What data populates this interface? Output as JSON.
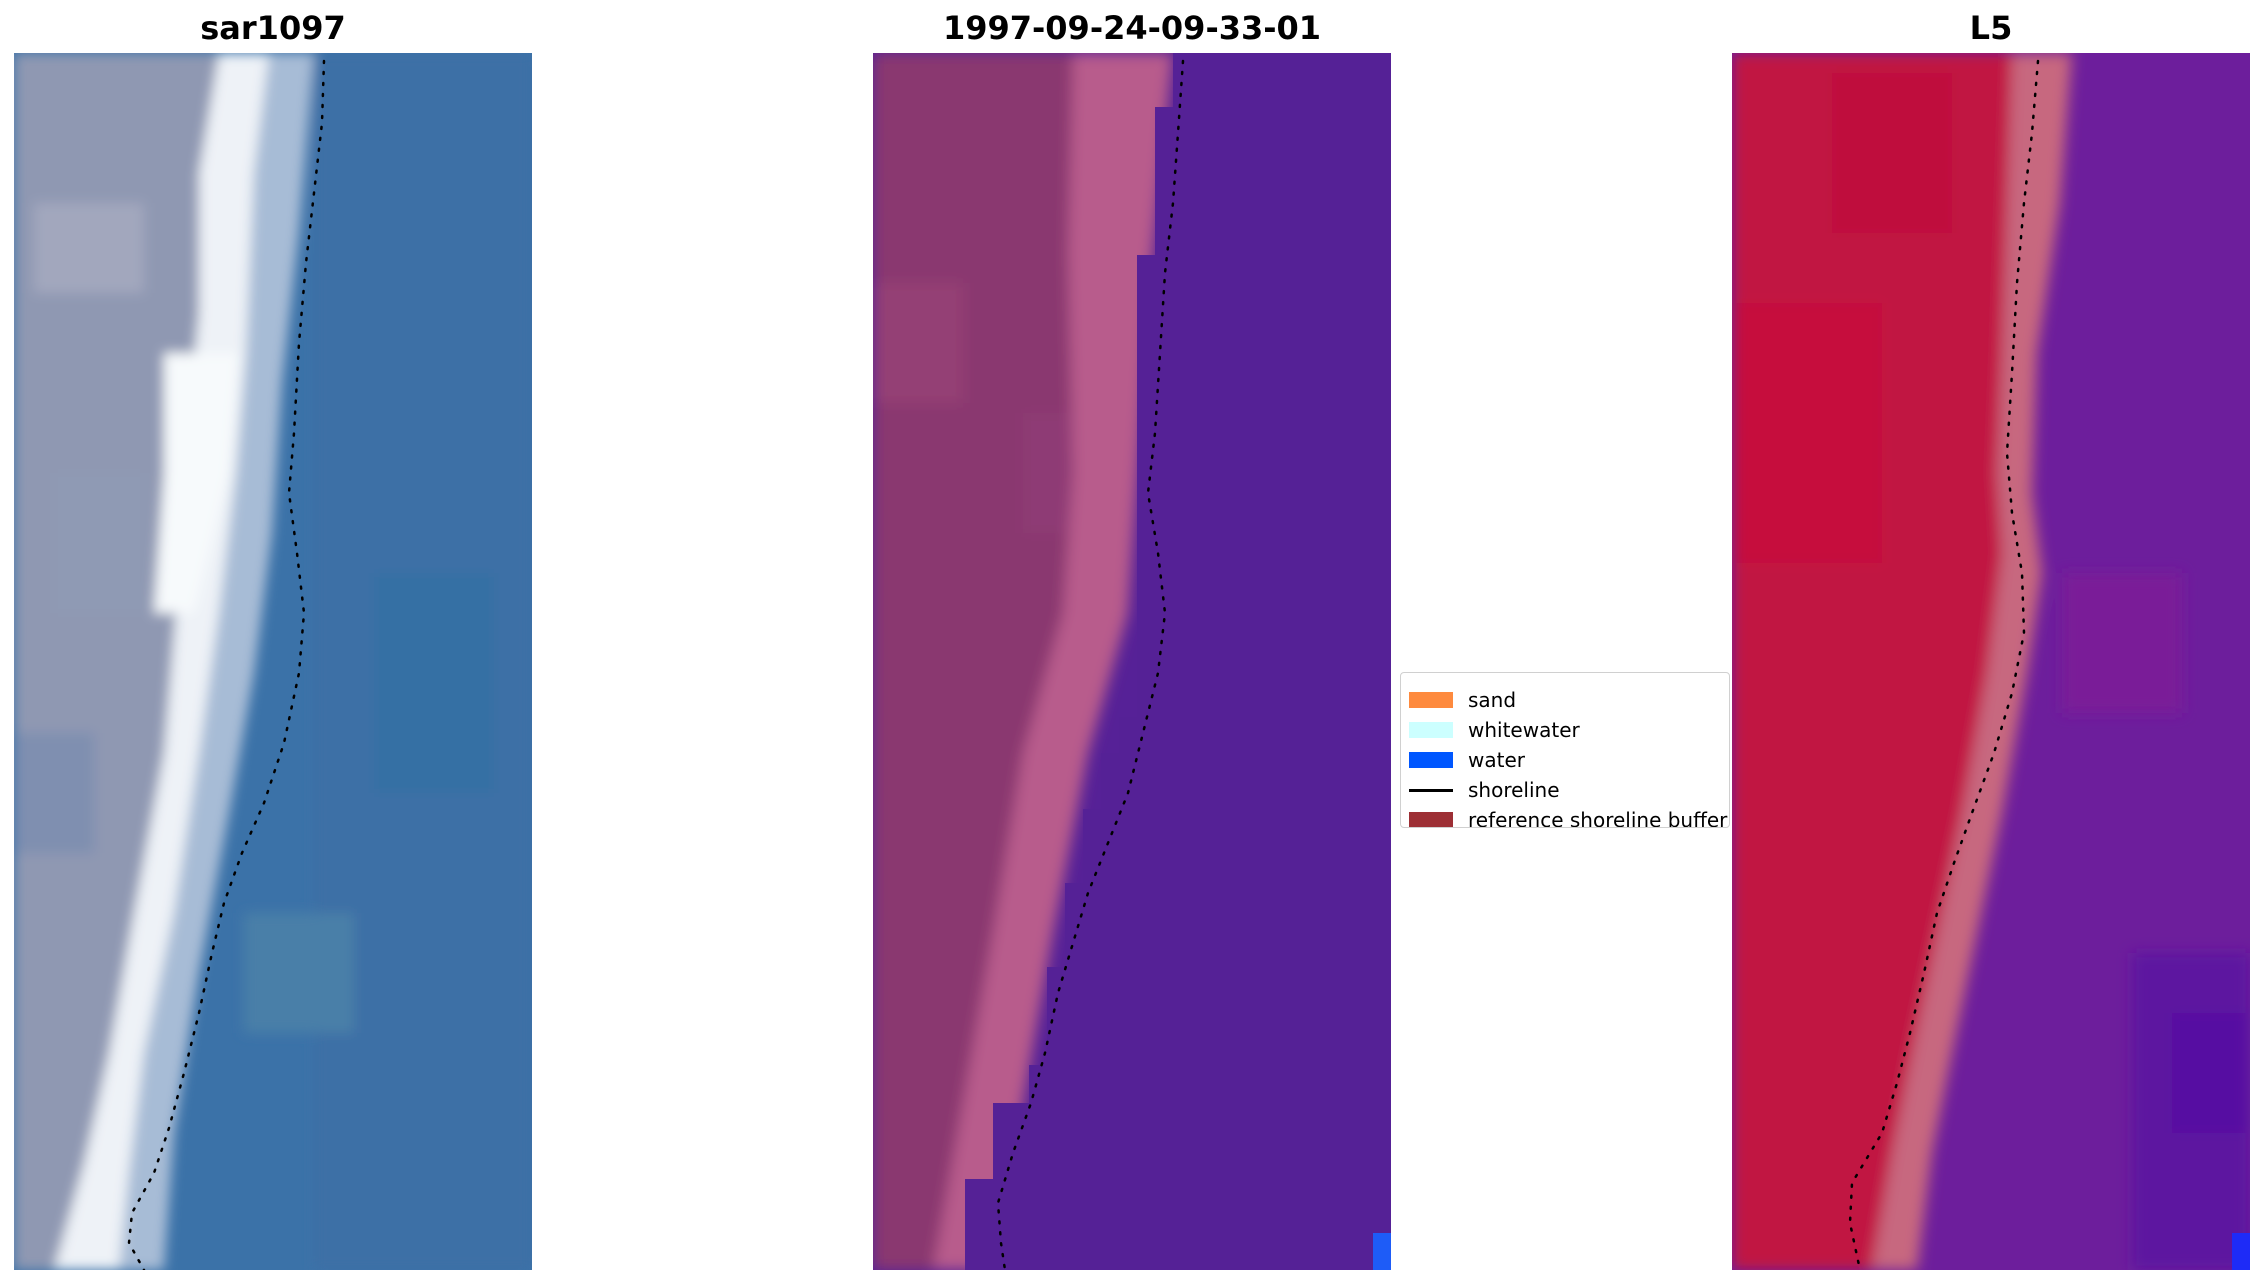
{
  "panels": [
    {
      "title": "sar1097"
    },
    {
      "title": "1997-09-24-09-33-01"
    },
    {
      "title": "L5"
    }
  ],
  "legend": {
    "items": [
      {
        "label": "sand",
        "color": "#fe8a3e",
        "kind": "patch"
      },
      {
        "label": "whitewater",
        "color": "#ccffff",
        "kind": "patch"
      },
      {
        "label": "water",
        "color": "#0057ff",
        "kind": "patch"
      },
      {
        "label": "shoreline",
        "color": "#000000",
        "kind": "line"
      },
      {
        "label": "reference shoreline buffer",
        "color": "#9d2f35",
        "kind": "patch"
      }
    ]
  },
  "colors": {
    "rgb_land": "#8d96b0",
    "rgb_surf": "#f1f5fa",
    "rgb_sea": "#3b71a7",
    "classified_land": "#8a376f",
    "classified_sand_buffer": "#b95b8c",
    "classified_water": "#552196",
    "water_pixel": "#1e5cf7",
    "mndwi_land": "#c01040",
    "mndwi_transition": "#c4627a",
    "mndwi_water": "#6e1e9b"
  }
}
